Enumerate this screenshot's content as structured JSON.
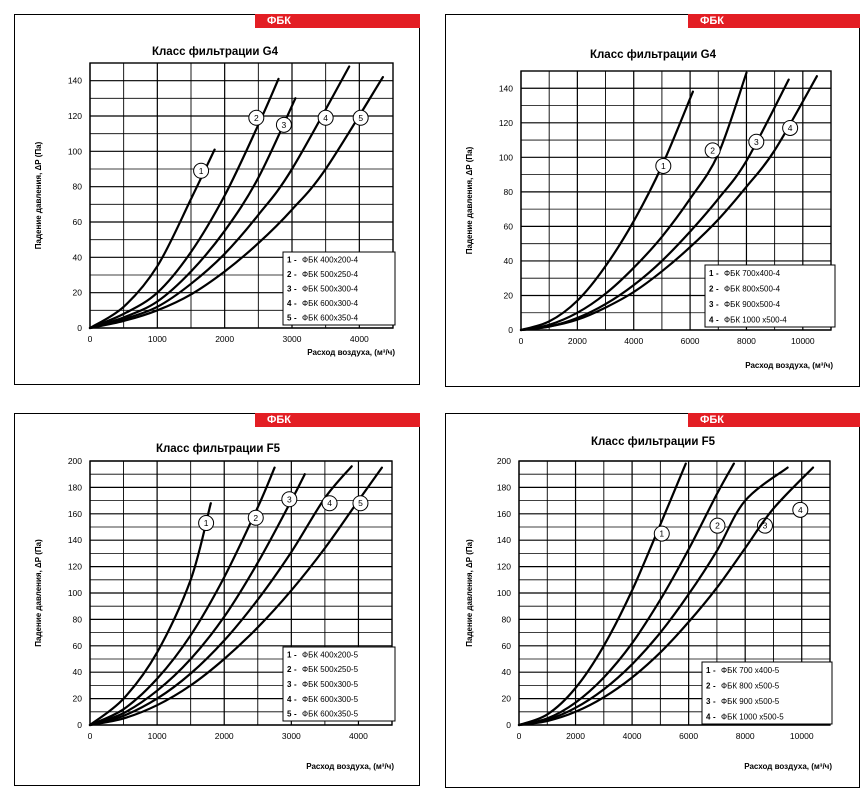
{
  "chart_data": [
    {
      "type": "line",
      "badge": "ФБК",
      "title": "Класс фильтрации G4",
      "xlabel": "Расход воздуха, (м³/ч)",
      "ylabel": "Падение давления, ΔP (Па)",
      "xlim": [
        0,
        4500
      ],
      "ylim": [
        0,
        150
      ],
      "xticks": [
        "0",
        "1000",
        "2000",
        "3000",
        "4000"
      ],
      "xtick_values": [
        0,
        1000,
        2000,
        3000,
        4000
      ],
      "yticks": [
        "0",
        "20",
        "40",
        "60",
        "80",
        "100",
        "120",
        "140"
      ],
      "ytick_values": [
        0,
        20,
        40,
        60,
        80,
        100,
        120,
        140
      ],
      "grid": true,
      "legend_position": "bottom-right",
      "series": [
        {
          "name": "ФБК 400x200-4",
          "label": "1",
          "x": [
            0,
            500,
            1000,
            1500,
            1850
          ],
          "y": [
            0,
            12,
            35,
            73,
            101
          ],
          "marker": [
            1650,
            89
          ]
        },
        {
          "name": "ФБК 500x250-4",
          "label": "2",
          "x": [
            0,
            500,
            1000,
            1500,
            2000,
            2500,
            2800
          ],
          "y": [
            0,
            8,
            20,
            43,
            75,
            115,
            141
          ],
          "marker": [
            2470,
            119
          ]
        },
        {
          "name": "ФБК 500x300-4",
          "label": "3",
          "x": [
            0,
            500,
            1000,
            1500,
            2000,
            2500,
            3050
          ],
          "y": [
            0,
            6,
            15,
            32,
            55,
            85,
            130
          ],
          "marker": [
            2880,
            115
          ]
        },
        {
          "name": "ФБК 600x300-4",
          "label": "4",
          "x": [
            0,
            500,
            1000,
            1500,
            2000,
            2500,
            3000,
            3850
          ],
          "y": [
            0,
            5,
            12,
            25,
            42,
            64,
            90,
            148
          ],
          "marker": [
            3500,
            119
          ]
        },
        {
          "name": "ФБК 600x350-4",
          "label": "5",
          "x": [
            0,
            500,
            1000,
            1500,
            2000,
            2500,
            3000,
            3500,
            4350
          ],
          "y": [
            0,
            4,
            10,
            19,
            32,
            48,
            67,
            90,
            142
          ],
          "marker": [
            4020,
            119
          ]
        }
      ],
      "legend_numbers": [
        "1",
        "2",
        "3",
        "4",
        "5"
      ],
      "legend_names": [
        "ФБК 400х200-4",
        "ФБК 500х250-4",
        "ФБК 500х300-4",
        "ФБК 600х300-4",
        "ФБК 600х350-4"
      ],
      "legend_sep": "-"
    },
    {
      "type": "line",
      "badge": "ФБК",
      "title": "Класс фильтрации G4",
      "xlabel": "Расход воздуха, (м³/ч)",
      "ylabel": "Падение давления, ΔP (Па)",
      "xlim": [
        0,
        11000
      ],
      "ylim": [
        0,
        150
      ],
      "xticks": [
        "0",
        "2000",
        "4000",
        "6000",
        "8000",
        "10000"
      ],
      "xtick_values": [
        0,
        2000,
        4000,
        6000,
        8000,
        10000
      ],
      "yticks": [
        "0",
        "20",
        "40",
        "60",
        "80",
        "100",
        "120",
        "140"
      ],
      "ytick_values": [
        0,
        20,
        40,
        60,
        80,
        100,
        120,
        140
      ],
      "grid": true,
      "legend_position": "bottom-right",
      "series": [
        {
          "name": "ФБК 700x400-4",
          "label": "1",
          "x": [
            0,
            1000,
            2000,
            3000,
            4000,
            5000,
            6100
          ],
          "y": [
            0,
            5,
            17,
            37,
            63,
            95,
            138
          ],
          "marker": [
            5050,
            95
          ]
        },
        {
          "name": "ФБК 800x500-4",
          "label": "2",
          "x": [
            0,
            1000,
            2000,
            3000,
            4000,
            5000,
            6000,
            7000,
            8000
          ],
          "y": [
            0,
            3,
            10,
            21,
            36,
            54,
            76,
            102,
            149
          ],
          "marker": [
            6800,
            104
          ]
        },
        {
          "name": "ФБК 900x500-4",
          "label": "3",
          "x": [
            0,
            1000,
            2000,
            3000,
            4000,
            5000,
            6000,
            7000,
            8000,
            9500
          ],
          "y": [
            0,
            2,
            7,
            15,
            26,
            40,
            57,
            76,
            98,
            145
          ],
          "marker": [
            8350,
            109
          ]
        },
        {
          "name": "ФБК 1000x500-4",
          "label": "4",
          "x": [
            0,
            1000,
            2000,
            3000,
            4000,
            5000,
            6000,
            7000,
            8000,
            9000,
            10500
          ],
          "y": [
            0,
            2,
            6,
            13,
            22,
            34,
            48,
            64,
            83,
            104,
            147
          ],
          "marker": [
            9550,
            117
          ]
        }
      ],
      "legend_numbers": [
        "1",
        "2",
        "3",
        "4"
      ],
      "legend_names": [
        "ФБК 700х400-4",
        "ФБК 800х500-4",
        "ФБК 900х500-4",
        "ФБК 1000 х500-4"
      ],
      "legend_sep": "-"
    },
    {
      "type": "line",
      "badge": "ФБК",
      "title": "Класс фильтрации F5",
      "xlabel": "Расход воздуха, (м³/ч)",
      "ylabel": "Падение давления, ΔP (Па)",
      "xlim": [
        0,
        4500
      ],
      "ylim": [
        0,
        200
      ],
      "xticks": [
        "0",
        "1000",
        "2000",
        "3000",
        "4000"
      ],
      "xtick_values": [
        0,
        1000,
        2000,
        3000,
        4000
      ],
      "yticks": [
        "0",
        "20",
        "40",
        "60",
        "80",
        "100",
        "120",
        "140",
        "160",
        "180",
        "200"
      ],
      "ytick_values": [
        0,
        20,
        40,
        60,
        80,
        100,
        120,
        140,
        160,
        180,
        200
      ],
      "grid": true,
      "legend_position": "bottom-right",
      "series": [
        {
          "name": "ФБК 400x200-5",
          "label": "1",
          "x": [
            0,
            500,
            1000,
            1500,
            1800
          ],
          "y": [
            0,
            20,
            55,
            110,
            168
          ],
          "marker": [
            1730,
            153
          ]
        },
        {
          "name": "ФБК 500x250-5",
          "label": "2",
          "x": [
            0,
            500,
            1000,
            1500,
            2000,
            2500,
            2750
          ],
          "y": [
            0,
            12,
            35,
            68,
            112,
            165,
            195
          ],
          "marker": [
            2470,
            157
          ]
        },
        {
          "name": "ФБК 500x300-5",
          "label": "3",
          "x": [
            0,
            500,
            1000,
            1500,
            2000,
            2500,
            3000,
            3200
          ],
          "y": [
            0,
            9,
            26,
            50,
            82,
            123,
            170,
            190
          ],
          "marker": [
            2970,
            171
          ]
        },
        {
          "name": "ФБК 600x300-5",
          "label": "4",
          "x": [
            0,
            500,
            1000,
            1500,
            2000,
            2500,
            3000,
            3500,
            3900
          ],
          "y": [
            0,
            7,
            20,
            39,
            64,
            95,
            131,
            172,
            196
          ],
          "marker": [
            3570,
            168
          ]
        },
        {
          "name": "ФБК 600x350-5",
          "label": "5",
          "x": [
            0,
            500,
            1000,
            1500,
            2000,
            2500,
            3000,
            3500,
            4000,
            4350
          ],
          "y": [
            0,
            5,
            15,
            30,
            50,
            74,
            102,
            134,
            170,
            195
          ],
          "marker": [
            4030,
            168
          ]
        }
      ],
      "legend_numbers": [
        "1",
        "2",
        "3",
        "4",
        "5"
      ],
      "legend_names": [
        "ФБК 400х200-5",
        "ФБК 500х250-5",
        "ФБК 500х300-5",
        "ФБК 600х300-5",
        "ФБК 600х350-5"
      ],
      "legend_sep": "-"
    },
    {
      "type": "line",
      "badge": "ФБК",
      "title": "Класс фильтрации F5",
      "xlabel": "Расход воздуха, (м³/ч)",
      "ylabel": "Падение давления, ΔP (Па)",
      "xlim": [
        0,
        11000
      ],
      "ylim": [
        0,
        200
      ],
      "xticks": [
        "0",
        "2000",
        "4000",
        "6000",
        "8000",
        "10000"
      ],
      "xtick_values": [
        0,
        2000,
        4000,
        6000,
        8000,
        10000
      ],
      "yticks": [
        "0",
        "20",
        "40",
        "60",
        "80",
        "100",
        "120",
        "140",
        "160",
        "180",
        "200"
      ],
      "ytick_values": [
        0,
        20,
        40,
        60,
        80,
        100,
        120,
        140,
        160,
        180,
        200
      ],
      "grid": true,
      "legend_position": "bottom-right",
      "series": [
        {
          "name": "ФБК 700x400-5",
          "label": "1",
          "x": [
            0,
            1000,
            2000,
            3000,
            4000,
            5000,
            5900
          ],
          "y": [
            0,
            8,
            28,
            60,
            102,
            152,
            198
          ],
          "marker": [
            5050,
            145
          ]
        },
        {
          "name": "ФБК 800x500-5",
          "label": "2",
          "x": [
            0,
            1000,
            2000,
            3000,
            4000,
            5000,
            6000,
            7000,
            7600
          ],
          "y": [
            0,
            5,
            17,
            36,
            62,
            95,
            133,
            175,
            198
          ],
          "marker": [
            7020,
            151
          ]
        },
        {
          "name": "ФБК 900x500-5",
          "label": "3",
          "x": [
            0,
            1000,
            2000,
            3000,
            4000,
            5000,
            6000,
            7000,
            8000,
            9500
          ],
          "y": [
            0,
            4,
            13,
            27,
            46,
            70,
            99,
            132,
            170,
            195
          ],
          "marker": [
            8700,
            151
          ]
        },
        {
          "name": "ФБК 1000x500-5",
          "label": "4",
          "x": [
            0,
            1000,
            2000,
            3000,
            4000,
            5000,
            6000,
            7000,
            8000,
            9000,
            10400
          ],
          "y": [
            0,
            3,
            10,
            21,
            36,
            55,
            78,
            104,
            134,
            164,
            195
          ],
          "marker": [
            9950,
            163
          ]
        }
      ],
      "legend_numbers": [
        "1",
        "2",
        "3",
        "4"
      ],
      "legend_names": [
        "ФБК 700 х400-5",
        "ФБК 800 х500-5",
        "ФБК 900 х500-5",
        "ФБК 1000 х500-5"
      ],
      "legend_sep": "-"
    }
  ]
}
